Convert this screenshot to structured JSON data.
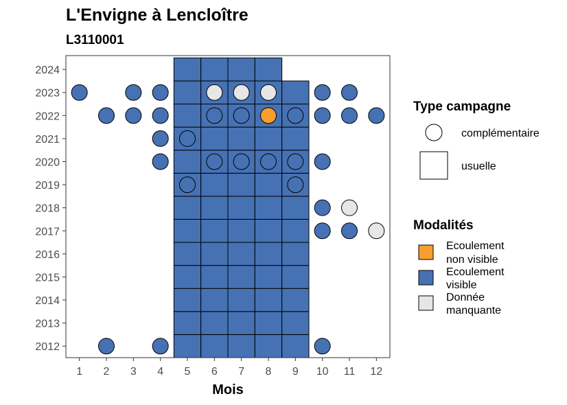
{
  "chart_data": {
    "type": "heatmap",
    "title": "L'Envigne à Lencloître",
    "subtitle": "L3110001",
    "xlabel": "Mois",
    "ylabel": "",
    "x_ticks": [
      1,
      2,
      3,
      4,
      5,
      6,
      7,
      8,
      9,
      10,
      11,
      12
    ],
    "y_ticks": [
      2012,
      2013,
      2014,
      2015,
      2016,
      2017,
      2018,
      2019,
      2020,
      2021,
      2022,
      2023,
      2024
    ],
    "xlim": [
      0.5,
      12.5
    ],
    "ylim": [
      2011.5,
      2024.6
    ],
    "grid": false,
    "legend_placement": "right",
    "colors": {
      "Ecoulement non visible": "#f89e2e",
      "Ecoulement visible": "#4672b4",
      "Donnée manquante": "#e6e6e6"
    },
    "type_legend": {
      "title": "Type campagne",
      "items": [
        {
          "label": "complémentaire",
          "shape": "circle"
        },
        {
          "label": "usuelle",
          "shape": "square"
        }
      ]
    },
    "modalite_legend": {
      "title": "Modalités",
      "items": [
        {
          "label": "Ecoulement non visible",
          "lines": [
            "Ecoulement",
            "non visible"
          ],
          "color": "#f89e2e"
        },
        {
          "label": "Ecoulement visible",
          "lines": [
            "Ecoulement",
            "visible"
          ],
          "color": "#4672b4"
        },
        {
          "label": "Donnée manquante",
          "lines": [
            "Donnée",
            "manquante"
          ],
          "color": "#e6e6e6"
        }
      ]
    },
    "usuelle": [
      {
        "year": 2012,
        "months": [
          5,
          6,
          7,
          8,
          9
        ],
        "modalite": "Ecoulement visible"
      },
      {
        "year": 2013,
        "months": [
          5,
          6,
          7,
          8,
          9
        ],
        "modalite": "Ecoulement visible"
      },
      {
        "year": 2014,
        "months": [
          5,
          6,
          7,
          8,
          9
        ],
        "modalite": "Ecoulement visible"
      },
      {
        "year": 2015,
        "months": [
          5,
          6,
          7,
          8,
          9
        ],
        "modalite": "Ecoulement visible"
      },
      {
        "year": 2016,
        "months": [
          5,
          6,
          7,
          8,
          9
        ],
        "modalite": "Ecoulement visible"
      },
      {
        "year": 2017,
        "months": [
          5,
          6,
          7,
          8,
          9
        ],
        "modalite": "Ecoulement visible"
      },
      {
        "year": 2018,
        "months": [
          5,
          6,
          7,
          8,
          9
        ],
        "modalite": "Ecoulement visible"
      },
      {
        "year": 2019,
        "months": [
          5,
          6,
          7,
          8,
          9
        ],
        "modalite": "Ecoulement visible"
      },
      {
        "year": 2020,
        "months": [
          5,
          6,
          7,
          8,
          9
        ],
        "modalite": "Ecoulement visible"
      },
      {
        "year": 2021,
        "months": [
          5,
          6,
          7,
          8,
          9
        ],
        "modalite": "Ecoulement visible"
      },
      {
        "year": 2022,
        "months": [
          5,
          6,
          7,
          8,
          9
        ],
        "modalite": "Ecoulement visible"
      },
      {
        "year": 2023,
        "months": [
          5,
          6,
          7,
          8,
          9
        ],
        "modalite": "Ecoulement visible"
      },
      {
        "year": 2024,
        "months": [
          5,
          6,
          7,
          8
        ],
        "modalite": "Ecoulement visible"
      }
    ],
    "complementaire": [
      {
        "year": 2012,
        "month": 2,
        "modalite": "Ecoulement visible"
      },
      {
        "year": 2012,
        "month": 4,
        "modalite": "Ecoulement visible"
      },
      {
        "year": 2012,
        "month": 10,
        "modalite": "Ecoulement visible"
      },
      {
        "year": 2017,
        "month": 10,
        "modalite": "Ecoulement visible"
      },
      {
        "year": 2017,
        "month": 11,
        "modalite": "Ecoulement visible"
      },
      {
        "year": 2017,
        "month": 12,
        "modalite": "Donnée manquante"
      },
      {
        "year": 2018,
        "month": 10,
        "modalite": "Ecoulement visible"
      },
      {
        "year": 2018,
        "month": 11,
        "modalite": "Donnée manquante"
      },
      {
        "year": 2019,
        "month": 5,
        "modalite": "Ecoulement visible"
      },
      {
        "year": 2019,
        "month": 9,
        "modalite": "Ecoulement visible"
      },
      {
        "year": 2020,
        "month": 4,
        "modalite": "Ecoulement visible"
      },
      {
        "year": 2020,
        "month": 6,
        "modalite": "Ecoulement visible"
      },
      {
        "year": 2020,
        "month": 7,
        "modalite": "Ecoulement visible"
      },
      {
        "year": 2020,
        "month": 8,
        "modalite": "Ecoulement visible"
      },
      {
        "year": 2020,
        "month": 9,
        "modalite": "Ecoulement visible"
      },
      {
        "year": 2020,
        "month": 10,
        "modalite": "Ecoulement visible"
      },
      {
        "year": 2021,
        "month": 4,
        "modalite": "Ecoulement visible"
      },
      {
        "year": 2021,
        "month": 5,
        "modalite": "Ecoulement visible"
      },
      {
        "year": 2022,
        "month": 2,
        "modalite": "Ecoulement visible"
      },
      {
        "year": 2022,
        "month": 3,
        "modalite": "Ecoulement visible"
      },
      {
        "year": 2022,
        "month": 4,
        "modalite": "Ecoulement visible"
      },
      {
        "year": 2022,
        "month": 6,
        "modalite": "Ecoulement visible"
      },
      {
        "year": 2022,
        "month": 7,
        "modalite": "Ecoulement visible"
      },
      {
        "year": 2022,
        "month": 8,
        "modalite": "Ecoulement non visible"
      },
      {
        "year": 2022,
        "month": 9,
        "modalite": "Ecoulement visible"
      },
      {
        "year": 2022,
        "month": 10,
        "modalite": "Ecoulement visible"
      },
      {
        "year": 2022,
        "month": 11,
        "modalite": "Ecoulement visible"
      },
      {
        "year": 2022,
        "month": 12,
        "modalite": "Ecoulement visible"
      },
      {
        "year": 2023,
        "month": 1,
        "modalite": "Ecoulement visible"
      },
      {
        "year": 2023,
        "month": 3,
        "modalite": "Ecoulement visible"
      },
      {
        "year": 2023,
        "month": 4,
        "modalite": "Ecoulement visible"
      },
      {
        "year": 2023,
        "month": 6,
        "modalite": "Donnée manquante"
      },
      {
        "year": 2023,
        "month": 7,
        "modalite": "Donnée manquante"
      },
      {
        "year": 2023,
        "month": 8,
        "modalite": "Donnée manquante"
      },
      {
        "year": 2023,
        "month": 10,
        "modalite": "Ecoulement visible"
      },
      {
        "year": 2023,
        "month": 11,
        "modalite": "Ecoulement visible"
      }
    ]
  }
}
